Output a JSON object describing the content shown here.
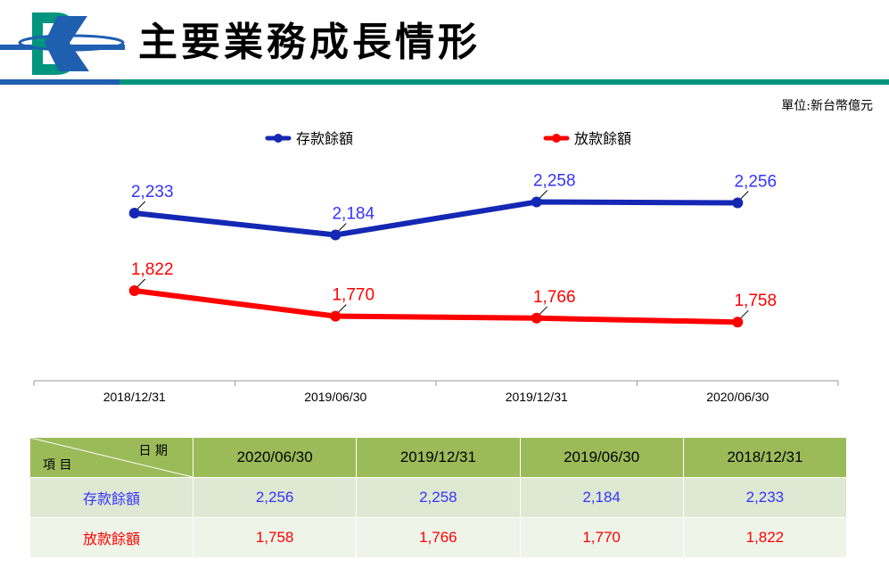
{
  "header": {
    "title": "主要業務成長情形",
    "logo_colors": {
      "teal": "#00957f",
      "blue": "#1f5fb0"
    }
  },
  "unit_label": "單位:新台幣億元",
  "colors": {
    "deposit": "#1428b4",
    "deposit_text": "#3333ff",
    "loan": "#ff0000",
    "table_header": "#9bbb59"
  },
  "chart_data": {
    "type": "line",
    "categories": [
      "2018/12/31",
      "2019/06/30",
      "2019/12/31",
      "2020/06/30"
    ],
    "series": [
      {
        "name": "存款餘額",
        "values": [
          2233,
          2184,
          2258,
          2256
        ],
        "labels": [
          "2,233",
          "2,184",
          "2,258",
          "2,256"
        ]
      },
      {
        "name": "放款餘額",
        "values": [
          1822,
          1770,
          1766,
          1758
        ],
        "labels": [
          "1,822",
          "1,770",
          "1,766",
          "1,758"
        ]
      }
    ],
    "legend_position": "top-center",
    "grid": false
  },
  "table": {
    "corner_date": "日 期",
    "corner_item": "項 目",
    "columns": [
      "2020/06/30",
      "2019/12/31",
      "2019/06/30",
      "2018/12/31"
    ],
    "rows": [
      {
        "label": "存款餘額",
        "values": [
          "2,256",
          "2,258",
          "2,184",
          "2,233"
        ]
      },
      {
        "label": "放款餘額",
        "values": [
          "1,758",
          "1,766",
          "1,770",
          "1,822"
        ]
      }
    ]
  }
}
